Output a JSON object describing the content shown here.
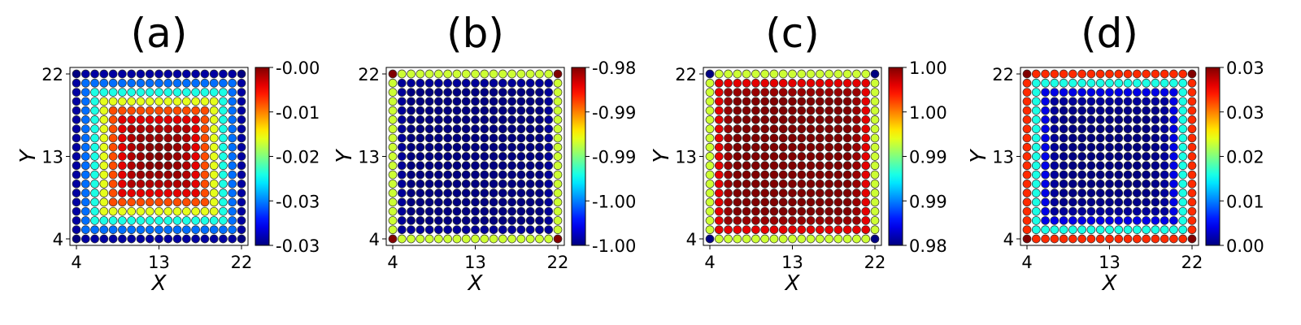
{
  "chart_data": [
    {
      "type": "heatmap",
      "title": "(a)",
      "xlabel": "X",
      "ylabel": "Y",
      "x_range": [
        4,
        22
      ],
      "y_range": [
        4,
        22
      ],
      "x_ticks": [
        "4",
        "13",
        "22"
      ],
      "y_ticks": [
        "4",
        "13",
        "22"
      ],
      "colormap": "jet",
      "colorbar": {
        "ticks": [
          "-0.00",
          "-0.01",
          "-0.02",
          "-0.03",
          "-0.03"
        ],
        "min": -0.03,
        "max": 0.0
      },
      "ring_values": [
        -0.029,
        -0.023,
        -0.018,
        -0.012,
        -0.006,
        -0.003,
        -0.0015,
        -0.0008,
        -0.0003,
        -0.0001
      ],
      "corner_value": -0.03,
      "grid_points_per_side": 19
    },
    {
      "type": "heatmap",
      "title": "(b)",
      "xlabel": "X",
      "ylabel": "Y",
      "x_range": [
        4,
        22
      ],
      "y_range": [
        4,
        22
      ],
      "x_ticks": [
        "4",
        "13",
        "22"
      ],
      "y_ticks": [
        "4",
        "13",
        "22"
      ],
      "colormap": "jet",
      "colorbar": {
        "ticks": [
          "-0.98",
          "-0.99",
          "-0.99",
          "-1.00",
          "-1.00"
        ],
        "min": -1.0,
        "max": -0.98
      },
      "ring_values": [
        -0.9885,
        -0.9995,
        -1.0,
        -1.0,
        -1.0,
        -1.0,
        -1.0,
        -1.0,
        -1.0,
        -1.0
      ],
      "corner_value": -0.98,
      "grid_points_per_side": 19
    },
    {
      "type": "heatmap",
      "title": "(c)",
      "xlabel": "X",
      "ylabel": "Y",
      "x_range": [
        4,
        22
      ],
      "y_range": [
        4,
        22
      ],
      "x_ticks": [
        "4",
        "13",
        "22"
      ],
      "y_ticks": [
        "4",
        "13",
        "22"
      ],
      "colormap": "jet",
      "colorbar": {
        "ticks": [
          "1.00",
          "1.00",
          "0.99",
          "0.99",
          "0.98"
        ],
        "min": 0.98,
        "max": 1.0
      },
      "ring_values": [
        0.9915,
        0.998,
        0.9995,
        1.0,
        1.0,
        1.0,
        1.0,
        1.0,
        1.0,
        1.0
      ],
      "corner_value": 0.98,
      "grid_points_per_side": 19
    },
    {
      "type": "heatmap",
      "title": "(d)",
      "xlabel": "X",
      "ylabel": "Y",
      "x_range": [
        4,
        22
      ],
      "y_range": [
        4,
        22
      ],
      "x_ticks": [
        "4",
        "13",
        "22"
      ],
      "y_ticks": [
        "4",
        "13",
        "22"
      ],
      "colormap": "jet",
      "colorbar": {
        "ticks": [
          "0.03",
          "0.03",
          "0.02",
          "0.01",
          "0.00"
        ],
        "min": 0.0,
        "max": 0.03
      },
      "ring_values": [
        0.025,
        0.012,
        0.003,
        0.0008,
        0.0003,
        0.0001,
        0.0,
        0.0,
        0.0,
        0.0
      ],
      "corner_value": 0.03,
      "grid_points_per_side": 19
    }
  ]
}
